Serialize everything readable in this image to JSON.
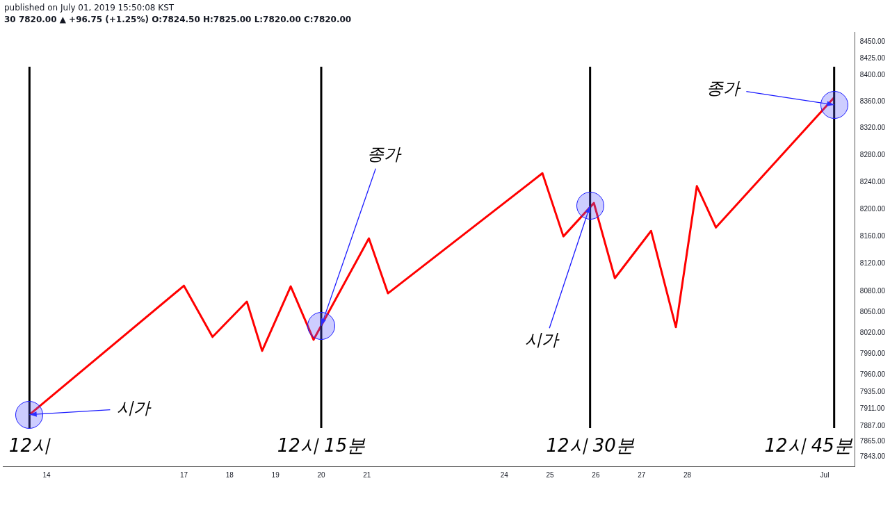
{
  "chart_data": {
    "type": "line",
    "title": "published on July 01, 2019 15:50:08 KST",
    "subtitle": "30 7820.00 ▲ +96.75 (+1.25%) O:7824.50 H:7825.00 L:7820.00 C:7820.00",
    "series": [
      {
        "color": "#ff0000",
        "x": [
          "2019-06-13T15:00",
          "2019-06-17T00:00",
          "2019-06-17T15:00",
          "2019-06-18T09:00",
          "2019-06-18T17:00",
          "2019-06-19T08:00",
          "2019-06-19T20:00",
          "2019-06-21T01:00",
          "2019-06-21T11:00",
          "2019-06-24T20:00",
          "2019-06-25T07:00",
          "2019-06-25T23:00",
          "2019-06-26T10:00",
          "2019-06-27T05:00",
          "2019-06-27T18:00",
          "2019-06-28T05:00",
          "2019-06-28T15:00",
          "2019-07-01T05:00"
        ],
        "values": [
          7903,
          8088,
          8014,
          8065,
          7994,
          8087,
          8010,
          8157,
          8077,
          8253,
          8160,
          8209,
          8099,
          8168,
          8028,
          8234,
          8173,
          8366
        ]
      }
    ],
    "xlim": [
      "2019-06-13T01:00",
      "2019-07-01T16:00"
    ],
    "xticks": [
      {
        "value": "2019-06-14",
        "label": "14"
      },
      {
        "value": "2019-06-17",
        "label": "17"
      },
      {
        "value": "2019-06-18",
        "label": "18"
      },
      {
        "value": "2019-06-19",
        "label": "19"
      },
      {
        "value": "2019-06-20",
        "label": "20"
      },
      {
        "value": "2019-06-21",
        "label": "21"
      },
      {
        "value": "2019-06-24",
        "label": "24"
      },
      {
        "value": "2019-06-25",
        "label": "25"
      },
      {
        "value": "2019-06-26",
        "label": "26"
      },
      {
        "value": "2019-06-27",
        "label": "27"
      },
      {
        "value": "2019-06-28",
        "label": "28"
      },
      {
        "value": "2019-07-01",
        "label": "Jul"
      }
    ],
    "ylim": [
      7830,
      8465
    ],
    "log": true,
    "yticks": [
      {
        "value": 7843,
        "label": "7843.00"
      },
      {
        "value": 7865,
        "label": "7865.00"
      },
      {
        "value": 7887,
        "label": "7887.00"
      },
      {
        "value": 7911,
        "label": "7911.00"
      },
      {
        "value": 7935,
        "label": "7935.00"
      },
      {
        "value": 7960,
        "label": "7960.00"
      },
      {
        "value": 7990,
        "label": "7990.00"
      },
      {
        "value": 8020,
        "label": "8020.00"
      },
      {
        "value": 8050,
        "label": "8050.00"
      },
      {
        "value": 8080,
        "label": "8080.00"
      },
      {
        "value": 8120,
        "label": "8120.00"
      },
      {
        "value": 8160,
        "label": "8160.00"
      },
      {
        "value": 8200,
        "label": "8200.00"
      },
      {
        "value": 8240,
        "label": "8240.00"
      },
      {
        "value": 8280,
        "label": "8280.00"
      },
      {
        "value": 8320,
        "label": "8320.00"
      },
      {
        "value": 8360,
        "label": "8360.00"
      },
      {
        "value": 8400,
        "label": "8400.00"
      },
      {
        "value": 8425,
        "label": "8425.00"
      },
      {
        "value": 8450,
        "label": "8450.00"
      }
    ],
    "ref_lines": [
      {
        "axis": "x",
        "value": "2019-06-13T15:00",
        "label": "12시",
        "color": "#000000"
      },
      {
        "axis": "x",
        "value": "2019-06-20T00:00",
        "label": "12시 15분",
        "color": "#000000"
      },
      {
        "axis": "x",
        "value": "2019-06-25T21:00",
        "label": "12시 30분",
        "color": "#000000"
      },
      {
        "axis": "x",
        "value": "2019-07-01T05:00",
        "label": "12시 45분",
        "color": "#000000"
      }
    ],
    "annotations": [
      {
        "text": "시가",
        "x": "2019-06-13T15:00",
        "y": 7903
      },
      {
        "text": "종가",
        "x": "2019-06-20T00:00",
        "y": 8030
      },
      {
        "text": "시가",
        "x": "2019-06-25T21:00",
        "y": 8205
      },
      {
        "text": "종가",
        "x": "2019-07-01T05:00",
        "y": 8355
      }
    ],
    "grid": false,
    "legend": false,
    "marker": "none",
    "line_style": "solid"
  }
}
